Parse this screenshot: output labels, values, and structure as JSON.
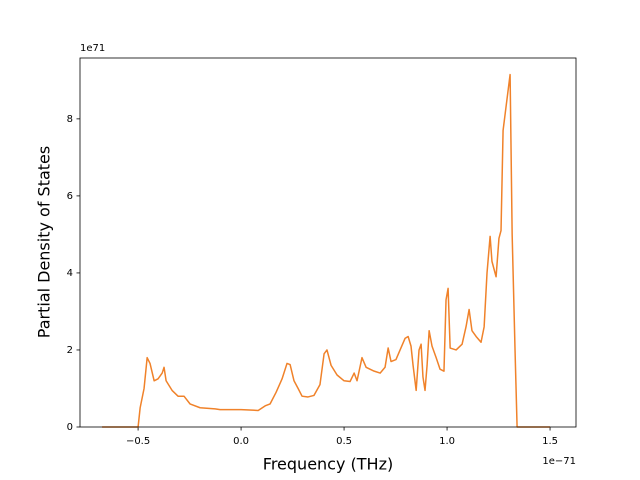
{
  "chart_data": {
    "type": "line",
    "xlabel": "Frequency (THz)",
    "ylabel": "Partial Density of States",
    "x_offset_text": "1e−71",
    "y_offset_text": "1e71",
    "color": "#f0822a",
    "x": [
      -0.675,
      -0.5,
      -0.49,
      -0.471,
      -0.456,
      -0.442,
      -0.422,
      -0.403,
      -0.383,
      -0.374,
      -0.364,
      -0.335,
      -0.306,
      -0.277,
      -0.248,
      -0.199,
      -0.126,
      -0.102,
      0.0,
      0.083,
      0.117,
      0.141,
      0.17,
      0.199,
      0.223,
      0.238,
      0.257,
      0.277,
      0.296,
      0.325,
      0.354,
      0.383,
      0.403,
      0.417,
      0.437,
      0.466,
      0.5,
      0.529,
      0.549,
      0.563,
      0.587,
      0.607,
      0.646,
      0.675,
      0.699,
      0.714,
      0.728,
      0.752,
      0.772,
      0.796,
      0.811,
      0.825,
      0.835,
      0.85,
      0.864,
      0.874,
      0.883,
      0.893,
      0.903,
      0.913,
      0.927,
      0.947,
      0.966,
      0.985,
      0.995,
      1.005,
      1.015,
      1.044,
      1.073,
      1.092,
      1.107,
      1.121,
      1.141,
      1.165,
      1.18,
      1.194,
      1.209,
      1.218,
      1.238,
      1.252,
      1.262,
      1.272,
      1.286,
      1.306,
      1.316,
      1.33,
      1.34,
      1.5
    ],
    "values": [
      0,
      0,
      0.5,
      1.0,
      1.8,
      1.65,
      1.2,
      1.25,
      1.4,
      1.55,
      1.2,
      0.95,
      0.8,
      0.8,
      0.6,
      0.5,
      0.47,
      0.45,
      0.45,
      0.43,
      0.55,
      0.6,
      0.9,
      1.25,
      1.65,
      1.62,
      1.2,
      1.0,
      0.8,
      0.78,
      0.82,
      1.1,
      1.9,
      2.0,
      1.6,
      1.35,
      1.2,
      1.18,
      1.4,
      1.2,
      1.8,
      1.55,
      1.45,
      1.4,
      1.55,
      2.05,
      1.7,
      1.75,
      2.0,
      2.3,
      2.35,
      2.1,
      1.6,
      0.95,
      2.0,
      2.15,
      1.3,
      0.95,
      1.6,
      2.5,
      2.1,
      1.8,
      1.5,
      1.45,
      3.3,
      3.6,
      2.05,
      2.0,
      2.15,
      2.6,
      3.05,
      2.5,
      2.35,
      2.2,
      2.6,
      4.0,
      4.95,
      4.3,
      3.9,
      4.9,
      5.1,
      7.7,
      8.3,
      9.15,
      5.0,
      2.0,
      0,
      0
    ],
    "xlim": [
      -0.782,
      1.626
    ],
    "ylim": [
      0,
      9.58
    ],
    "xticks": [
      {
        "value": -0.5,
        "label": "−0.5"
      },
      {
        "value": 0.0,
        "label": "0.0"
      },
      0.5,
      {
        "value": 1.0,
        "label": "1.0"
      },
      1.5
    ],
    "yticks": [
      0,
      2,
      4,
      6,
      8
    ],
    "grid": false
  }
}
